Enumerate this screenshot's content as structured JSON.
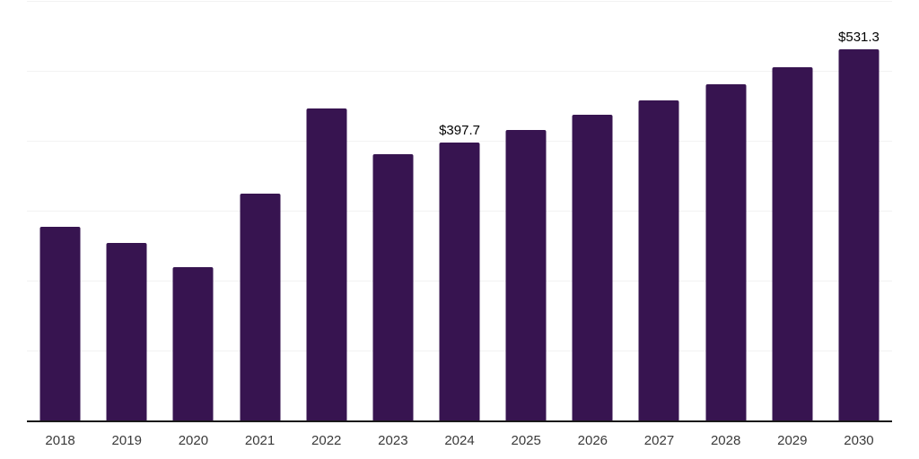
{
  "chart_data": {
    "type": "bar",
    "categories": [
      "2018",
      "2019",
      "2020",
      "2021",
      "2022",
      "2023",
      "2024",
      "2025",
      "2026",
      "2027",
      "2028",
      "2029",
      "2030"
    ],
    "values": [
      277.4,
      254.3,
      219.4,
      324.0,
      446.7,
      380.9,
      397.7,
      415.0,
      437.3,
      457.3,
      480.9,
      505.6,
      531.3
    ],
    "point_labels": [
      {
        "category": "2024",
        "text": "$397.7"
      },
      {
        "category": "2030",
        "text": "$531.3"
      }
    ],
    "ylim": [
      0,
      600
    ],
    "gridline_step": 100,
    "grid": true,
    "legend": "none",
    "y_axis_labels_visible": false,
    "colors": {
      "bar": "#371450",
      "axis_line": "#1a1a1a",
      "gridline": "#f2f2f2",
      "tick_label": "#3a3a3a",
      "data_label": "#000000",
      "background": "#ffffff"
    }
  }
}
